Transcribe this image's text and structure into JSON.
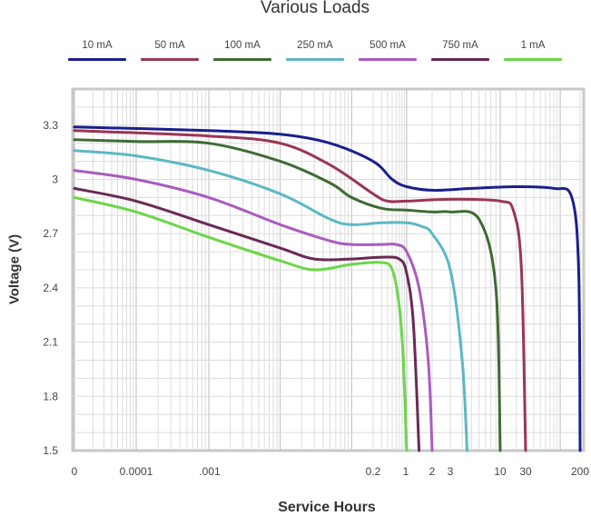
{
  "chart_data": {
    "type": "line",
    "title": "Various Loads",
    "xlabel": "Service Hours",
    "ylabel": "Voltage (V)",
    "x_scale": "log",
    "x_tick_labels": [
      "0",
      "0.0001",
      ".001",
      "0.2",
      "1",
      "2",
      "3",
      "10",
      "30",
      "200"
    ],
    "y_ticks": [
      "1.5",
      "1.8",
      "2.1",
      "2.4",
      "2.7",
      "3",
      "3.3"
    ],
    "ylim": [
      1.5,
      3.5
    ],
    "grid": true,
    "legend_position": "top",
    "series": [
      {
        "name": "10 mA",
        "color": "#1a1f8e",
        "x": [
          1e-05,
          0.001,
          0.01,
          0.05,
          0.2,
          0.5,
          1,
          2,
          5,
          20,
          80,
          150,
          190,
          200
        ],
        "y": [
          3.29,
          3.27,
          3.25,
          3.2,
          3.1,
          3.0,
          2.96,
          2.94,
          2.95,
          2.96,
          2.95,
          2.9,
          2.5,
          1.5
        ]
      },
      {
        "name": "50 mA",
        "color": "#9b3553",
        "x": [
          1e-05,
          0.001,
          0.01,
          0.05,
          0.2,
          0.4,
          1,
          3,
          10,
          18,
          25,
          30
        ],
        "y": [
          3.27,
          3.24,
          3.2,
          3.08,
          2.92,
          2.88,
          2.88,
          2.89,
          2.88,
          2.82,
          2.5,
          1.5
        ]
      },
      {
        "name": "100 mA",
        "color": "#3e6b34",
        "x": [
          1e-05,
          0.0001,
          0.001,
          0.01,
          0.05,
          0.1,
          0.3,
          1,
          2,
          3,
          6,
          9,
          10
        ],
        "y": [
          3.22,
          3.21,
          3.2,
          3.1,
          2.98,
          2.9,
          2.84,
          2.83,
          2.82,
          2.82,
          2.78,
          2.4,
          1.5
        ]
      },
      {
        "name": "250 mA",
        "color": "#5bb8c4",
        "x": [
          1e-05,
          0.0001,
          0.001,
          0.01,
          0.05,
          0.1,
          0.3,
          1,
          1.5,
          2,
          3,
          4,
          4.5
        ],
        "y": [
          3.16,
          3.13,
          3.05,
          2.92,
          2.78,
          2.75,
          2.76,
          2.76,
          2.74,
          2.7,
          2.5,
          2.0,
          1.5
        ]
      },
      {
        "name": "500 mA",
        "color": "#a85cbf",
        "x": [
          1e-05,
          0.0001,
          0.001,
          0.01,
          0.05,
          0.1,
          0.3,
          0.6,
          1,
          1.4,
          1.8,
          2.0
        ],
        "y": [
          3.05,
          3.0,
          2.9,
          2.75,
          2.66,
          2.64,
          2.64,
          2.64,
          2.6,
          2.4,
          2.0,
          1.5
        ]
      },
      {
        "name": "750 mA",
        "color": "#6a2a54",
        "x": [
          1e-05,
          0.0001,
          0.001,
          0.01,
          0.03,
          0.1,
          0.3,
          0.7,
          1,
          1.2,
          1.4
        ],
        "y": [
          2.95,
          2.88,
          2.75,
          2.62,
          2.56,
          2.56,
          2.57,
          2.56,
          2.48,
          2.2,
          1.5
        ]
      },
      {
        "name": "1 mA",
        "color": "#6bd64a",
        "x": [
          1e-05,
          0.0001,
          0.001,
          0.01,
          0.03,
          0.1,
          0.3,
          0.5,
          0.7,
          0.85,
          1
        ],
        "y": [
          2.9,
          2.82,
          2.68,
          2.55,
          2.5,
          2.53,
          2.54,
          2.5,
          2.3,
          2.0,
          1.5
        ]
      }
    ]
  }
}
